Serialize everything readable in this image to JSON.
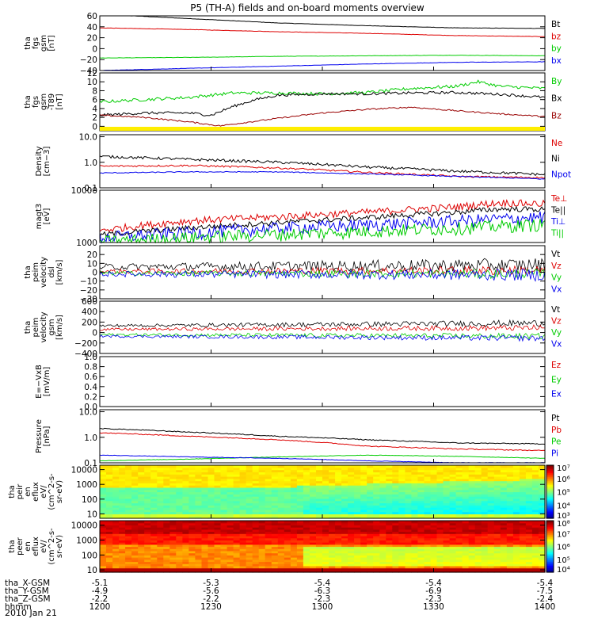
{
  "title": "P5 (TH-A) fields and on-board moments overview",
  "date_label": "2010 Jan 21",
  "colors": {
    "black": "#000000",
    "red": "#dd0000",
    "green": "#00cc00",
    "blue": "#0000ee",
    "darkred": "#990000",
    "yellow": "#ffee00"
  },
  "chart_data": [
    {
      "type": "line",
      "panel": "fgs_gsm",
      "ylabel": [
        "tha",
        "fgs",
        "gsm",
        "[nT]"
      ],
      "ylim": [
        -40,
        60
      ],
      "yscale": "linear",
      "ticks": [
        {
          "v": 60,
          "t": "60"
        },
        {
          "v": 40,
          "t": "40"
        },
        {
          "v": 20,
          "t": "20"
        },
        {
          "v": 0,
          "t": "0"
        },
        {
          "v": -20,
          "t": "−20"
        },
        {
          "v": -40,
          "t": "−40"
        }
      ],
      "series": [
        {
          "name": "Bt",
          "color": "black",
          "x": [
            0,
            0.2,
            0.4,
            0.6,
            0.8,
            1
          ],
          "y": [
            63,
            55,
            47,
            42,
            38,
            37
          ],
          "noise": 0.3
        },
        {
          "name": "bz",
          "color": "red",
          "x": [
            0,
            0.2,
            0.4,
            0.6,
            0.8,
            1
          ],
          "y": [
            38,
            35,
            31,
            28,
            24,
            22
          ],
          "noise": 0.3
        },
        {
          "name": "by",
          "color": "green",
          "x": [
            0,
            0.2,
            0.4,
            0.6,
            0.8,
            1
          ],
          "y": [
            -17,
            -16,
            -14,
            -13,
            -12,
            -13
          ],
          "noise": 0.3
        },
        {
          "name": "bx",
          "color": "blue",
          "x": [
            0,
            0.2,
            0.4,
            0.6,
            0.8,
            1
          ],
          "y": [
            -40,
            -36,
            -32,
            -28,
            -25,
            -24
          ],
          "noise": 0.3
        }
      ]
    },
    {
      "type": "line",
      "panel": "fgs_gsm_tsy",
      "ylabel": [
        "tha",
        "fgs",
        "gsm",
        "-T89",
        "[nT]"
      ],
      "ylim": [
        -1,
        12
      ],
      "yscale": "linear",
      "ticks": [
        {
          "v": 12,
          "t": "12"
        },
        {
          "v": 10,
          "t": "10"
        },
        {
          "v": 8,
          "t": "8"
        },
        {
          "v": 6,
          "t": "6"
        },
        {
          "v": 4,
          "t": "4"
        },
        {
          "v": 2,
          "t": "2"
        },
        {
          "v": 0,
          "t": "0"
        }
      ],
      "series": [
        {
          "name": "By",
          "color": "green",
          "x": [
            0,
            0.1,
            0.2,
            0.3,
            0.4,
            0.5,
            0.6,
            0.7,
            0.8,
            0.85,
            0.9,
            1
          ],
          "y": [
            5.5,
            6,
            6.5,
            7.5,
            7.5,
            7.3,
            7.6,
            8.5,
            9,
            10,
            9,
            8.5
          ],
          "noise": 0.35
        },
        {
          "name": "Bx",
          "color": "black",
          "x": [
            0,
            0.1,
            0.2,
            0.25,
            0.3,
            0.35,
            0.4,
            0.5,
            0.6,
            0.7,
            0.8,
            0.9,
            1
          ],
          "y": [
            2.5,
            3,
            3,
            2.5,
            4.5,
            6,
            7,
            7.3,
            7.3,
            7.5,
            7.6,
            7.2,
            6.5
          ],
          "noise": 0.3
        },
        {
          "name": "Bz",
          "color": "darkred",
          "x": [
            0,
            0.1,
            0.2,
            0.27,
            0.3,
            0.4,
            0.5,
            0.6,
            0.7,
            0.8,
            0.9,
            1
          ],
          "y": [
            2.5,
            2,
            1,
            0.1,
            0.5,
            1.8,
            3,
            3.8,
            4.3,
            3.5,
            2.8,
            2.2
          ],
          "noise": 0.15
        }
      ]
    },
    {
      "type": "line",
      "panel": "density",
      "ylabel": [
        "Density",
        "[cm−3]"
      ],
      "ylim": [
        0.1,
        12
      ],
      "yscale": "log",
      "ticks": [
        {
          "v": 10,
          "t": "10.0"
        },
        {
          "v": 1,
          "t": "1.0"
        },
        {
          "v": 0.1,
          "t": "0.1"
        }
      ],
      "series": [
        {
          "name": "Ne",
          "color": "red",
          "x": [
            0,
            0.2,
            0.4,
            0.6,
            0.8,
            1
          ],
          "y": [
            0.7,
            0.75,
            0.6,
            0.4,
            0.28,
            0.25
          ],
          "noise": 0.02
        },
        {
          "name": "Ni",
          "color": "black",
          "x": [
            0,
            0.2,
            0.4,
            0.6,
            0.8,
            1
          ],
          "y": [
            1.7,
            1.3,
            1.0,
            0.65,
            0.45,
            0.33
          ],
          "noise": 0.03
        },
        {
          "name": "Npot",
          "color": "blue",
          "x": [
            0,
            0.2,
            0.4,
            0.6,
            0.8,
            1
          ],
          "y": [
            0.38,
            0.42,
            0.42,
            0.35,
            0.28,
            0.22
          ],
          "noise": 0.01
        }
      ]
    },
    {
      "type": "line",
      "panel": "temperature",
      "ylabel": [
        "magt3",
        "[eV]"
      ],
      "ylim": [
        1000,
        10000
      ],
      "yscale": "log",
      "ticks": [
        {
          "v": 10000,
          "t": "10000"
        },
        {
          "v": 1000,
          "t": "1000"
        }
      ],
      "series": [
        {
          "name": "Te⊥",
          "color": "red",
          "x": [
            0,
            0.2,
            0.4,
            0.6,
            0.8,
            0.9,
            1
          ],
          "y": [
            1700,
            2600,
            3100,
            3800,
            4800,
            5800,
            5500
          ],
          "noise": 0.04
        },
        {
          "name": "Te||",
          "color": "black",
          "x": [
            0,
            0.2,
            0.4,
            0.6,
            0.8,
            0.9,
            1
          ],
          "y": [
            1400,
            1900,
            2400,
            3000,
            3800,
            4400,
            4300
          ],
          "noise": 0.03
        },
        {
          "name": "Ti⊥",
          "color": "blue",
          "x": [
            0,
            0.2,
            0.4,
            0.6,
            0.8,
            1
          ],
          "y": [
            1250,
            1550,
            1900,
            2200,
            2600,
            3100
          ],
          "noise": 0.07
        },
        {
          "name": "Ti||",
          "color": "green",
          "x": [
            0,
            0.2,
            0.4,
            0.6,
            0.8,
            1
          ],
          "y": [
            1050,
            1250,
            1450,
            1650,
            1900,
            2250
          ],
          "noise": 0.07
        }
      ]
    },
    {
      "type": "line",
      "panel": "velocity_dsl",
      "ylabel": [
        "tha",
        "peim",
        "velocity",
        "dsl",
        "[km/s]"
      ],
      "ylim": [
        -30,
        30
      ],
      "yscale": "linear",
      "ticks": [
        {
          "v": 20,
          "t": "20"
        },
        {
          "v": 10,
          "t": "10"
        },
        {
          "v": 0,
          "t": "0"
        },
        {
          "v": -10,
          "t": "−10"
        },
        {
          "v": -20,
          "t": "−20"
        },
        {
          "v": -30,
          "t": "−30"
        }
      ],
      "series": [
        {
          "name": "Vt",
          "color": "black",
          "x": [
            0,
            1
          ],
          "y": [
            6,
            8
          ],
          "noise": 6
        },
        {
          "name": "Vz",
          "color": "red",
          "x": [
            0,
            1
          ],
          "y": [
            1,
            2
          ],
          "noise": 4
        },
        {
          "name": "Vy",
          "color": "green",
          "x": [
            0,
            1
          ],
          "y": [
            -1,
            -2
          ],
          "noise": 4
        },
        {
          "name": "Vx",
          "color": "blue",
          "x": [
            0,
            1
          ],
          "y": [
            -2,
            -3
          ],
          "noise": 5
        }
      ]
    },
    {
      "type": "line",
      "panel": "velocity_gsm",
      "ylabel": [
        "tha",
        "peim",
        "velocity",
        "gsm",
        "[km/s]"
      ],
      "ylim": [
        -400,
        600
      ],
      "yscale": "linear",
      "ticks": [
        {
          "v": 600,
          "t": "600"
        },
        {
          "v": 400,
          "t": "400"
        },
        {
          "v": 200,
          "t": "200"
        },
        {
          "v": 0,
          "t": "0"
        },
        {
          "v": -200,
          "t": "−200"
        },
        {
          "v": -400,
          "t": "−400"
        }
      ],
      "series": [
        {
          "name": "Vt",
          "color": "black",
          "x": [
            0,
            1
          ],
          "y": [
            130,
            180
          ],
          "noise": 45
        },
        {
          "name": "Vz",
          "color": "red",
          "x": [
            0,
            1
          ],
          "y": [
            60,
            90
          ],
          "noise": 40
        },
        {
          "name": "Vy",
          "color": "green",
          "x": [
            0,
            1
          ],
          "y": [
            -40,
            -70
          ],
          "noise": 40
        },
        {
          "name": "Vx",
          "color": "blue",
          "x": [
            0,
            1
          ],
          "y": [
            -70,
            -110
          ],
          "noise": 40
        }
      ]
    },
    {
      "type": "line",
      "panel": "efield",
      "ylabel": [
        "E=−VxB",
        "[mV/m]"
      ],
      "ylim": [
        0,
        1
      ],
      "yscale": "linear",
      "ticks": [
        {
          "v": 1.0,
          "t": "1.0"
        },
        {
          "v": 0.8,
          "t": "0.8"
        },
        {
          "v": 0.6,
          "t": "0.6"
        },
        {
          "v": 0.4,
          "t": "0.4"
        },
        {
          "v": 0.2,
          "t": "0.2"
        },
        {
          "v": 0.0,
          "t": "0.0"
        }
      ],
      "series": [
        {
          "name": "Ez",
          "color": "red",
          "x": [],
          "y": []
        },
        {
          "name": "Ey",
          "color": "green",
          "x": [],
          "y": []
        },
        {
          "name": "Ex",
          "color": "blue",
          "x": [],
          "y": []
        }
      ]
    },
    {
      "type": "line",
      "panel": "pressure",
      "ylabel": [
        "Pressure",
        "[nPa]"
      ],
      "ylim": [
        0.1,
        12
      ],
      "yscale": "log",
      "ticks": [
        {
          "v": 10,
          "t": "10.0"
        },
        {
          "v": 1,
          "t": "1.0"
        },
        {
          "v": 0.1,
          "t": "0.1"
        }
      ],
      "series": [
        {
          "name": "Pt",
          "color": "black",
          "x": [
            0,
            0.2,
            0.4,
            0.6,
            0.8,
            1
          ],
          "y": [
            2.2,
            1.6,
            1.1,
            0.8,
            0.6,
            0.55
          ],
          "noise": 0.01
        },
        {
          "name": "Pb",
          "color": "red",
          "x": [
            0,
            0.2,
            0.4,
            0.6,
            0.8,
            1
          ],
          "y": [
            1.5,
            1.1,
            0.8,
            0.45,
            0.35,
            0.3
          ],
          "noise": 0.01
        },
        {
          "name": "Pe",
          "color": "green",
          "x": [
            0,
            0.2,
            0.4,
            0.6,
            0.8,
            1
          ],
          "y": [
            0.12,
            0.14,
            0.17,
            0.2,
            0.18,
            0.15
          ],
          "noise": 0.005
        },
        {
          "name": "Pi",
          "color": "blue",
          "x": [
            0,
            0.2,
            0.4,
            0.6,
            0.8,
            1
          ],
          "y": [
            0.2,
            0.17,
            0.15,
            0.12,
            0.1,
            0.1
          ],
          "noise": 0.005
        }
      ]
    },
    {
      "type": "heatmap",
      "panel": "ion_spectrogram",
      "ylabel": [
        "tha",
        "peir",
        "en",
        "eflux",
        "eV/",
        "(cm^2-s-",
        "sr-eV)"
      ],
      "ylim": [
        5,
        20000
      ],
      "yscale": "log",
      "ticks": [
        {
          "v": 10000,
          "t": "10000"
        },
        {
          "v": 1000,
          "t": "1000"
        },
        {
          "v": 100,
          "t": "100"
        },
        {
          "v": 10,
          "t": "10"
        }
      ],
      "colorbar": {
        "range": [
          3,
          7
        ],
        "ticks": [
          {
            "v": 7,
            "t": "10⁷"
          },
          {
            "v": 6,
            "t": "10⁶"
          },
          {
            "v": 5,
            "t": "10⁵"
          },
          {
            "v": 4,
            "t": "10⁴"
          },
          {
            "v": 3,
            "t": "10³"
          }
        ]
      }
    },
    {
      "type": "heatmap",
      "panel": "electron_spectrogram",
      "ylabel": [
        "tha",
        "peer",
        "en",
        "eflux",
        "eV/",
        "(cm^2-s-",
        "sr-eV)"
      ],
      "ylim": [
        7,
        20000
      ],
      "yscale": "log",
      "ticks": [
        {
          "v": 10000,
          "t": "10000"
        },
        {
          "v": 1000,
          "t": "1000"
        },
        {
          "v": 100,
          "t": "100"
        },
        {
          "v": 10,
          "t": "10"
        }
      ],
      "colorbar": {
        "range": [
          4,
          8
        ],
        "ticks": [
          {
            "v": 8,
            "t": "10⁸"
          },
          {
            "v": 7,
            "t": "10⁷"
          },
          {
            "v": 6,
            "t": "10⁶"
          },
          {
            "v": 5,
            "t": "10⁵"
          },
          {
            "v": 4,
            "t": "10⁴"
          }
        ]
      }
    }
  ],
  "x_axis": {
    "rows": [
      {
        "label": "tha_X-GSM",
        "values": [
          "-5.1",
          "-5.3",
          "-5.4",
          "-5.4",
          "-5.4"
        ]
      },
      {
        "label": "tha_Y-GSM",
        "values": [
          "-4.9",
          "-5.6",
          "-6.3",
          "-6.9",
          "-7.5"
        ]
      },
      {
        "label": "tha_Z-GSM",
        "values": [
          "-2.2",
          "-2.2",
          "-2.3",
          "-2.3",
          "-2.4"
        ]
      },
      {
        "label": "hhmm",
        "values": [
          "1200",
          "1230",
          "1300",
          "1330",
          "1400"
        ]
      }
    ]
  }
}
